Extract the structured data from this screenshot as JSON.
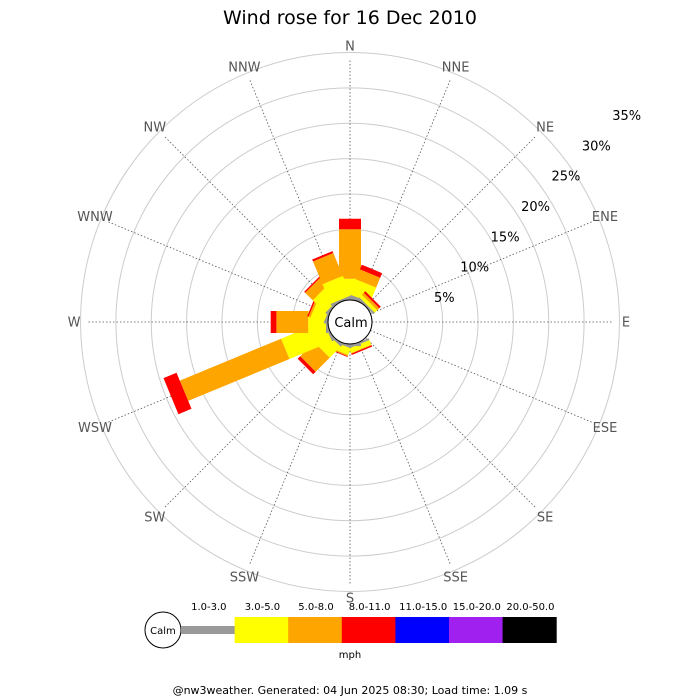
{
  "chart_data": {
    "type": "wind-rose",
    "title": "Wind rose for 16 Dec 2010",
    "directions": [
      "N",
      "NNE",
      "NE",
      "ENE",
      "E",
      "ESE",
      "SE",
      "SSE",
      "S",
      "SSW",
      "SW",
      "WSW",
      "W",
      "WNW",
      "NW",
      "NNW"
    ],
    "radial_labels": [
      "5%",
      "10%",
      "15%",
      "20%",
      "25%",
      "30%",
      "35%"
    ],
    "radial_values": [
      5,
      10,
      15,
      20,
      25,
      30,
      35
    ],
    "calm_label": "Calm",
    "speed_bins": [
      {
        "label": "1.0-3.0",
        "color": "#999999"
      },
      {
        "label": "3.0-5.0",
        "color": "#ffff00"
      },
      {
        "label": "5.0-8.0",
        "color": "#ffa500"
      },
      {
        "label": "8.0-11.0",
        "color": "#ff0000"
      },
      {
        "label": "11.0-15.0",
        "color": "#0000ff"
      },
      {
        "label": "15.0-20.0",
        "color": "#a020f0"
      },
      {
        "label": "20.0-50.0",
        "color": "#000000"
      }
    ],
    "unit": "mph",
    "series": [
      {
        "direction": "N",
        "values": [
          0.5,
          2.5,
          7.0,
          1.5,
          0,
          0,
          0
        ]
      },
      {
        "direction": "NNE",
        "values": [
          0.5,
          2.3,
          1.5,
          0.7,
          0,
          0,
          0
        ]
      },
      {
        "direction": "NE",
        "values": [
          0.3,
          0.5,
          0.4,
          0.3,
          0,
          0,
          0
        ]
      },
      {
        "direction": "ENE",
        "values": [
          0,
          0,
          0,
          0,
          0,
          0,
          0
        ]
      },
      {
        "direction": "E",
        "values": [
          0,
          0,
          0,
          0,
          0,
          0,
          0
        ]
      },
      {
        "direction": "ESE",
        "values": [
          0,
          0,
          0,
          0,
          0,
          0,
          0
        ]
      },
      {
        "direction": "SE",
        "values": [
          0,
          0,
          0,
          0,
          0,
          0,
          0
        ]
      },
      {
        "direction": "SSE",
        "values": [
          0.3,
          0.7,
          0.1,
          0.2,
          0,
          0,
          0
        ]
      },
      {
        "direction": "S",
        "values": [
          0.3,
          0,
          0,
          0,
          0,
          0,
          0
        ]
      },
      {
        "direction": "SSW",
        "values": [
          0.3,
          1.0,
          0.2,
          0.1,
          0,
          0,
          0
        ]
      },
      {
        "direction": "SW",
        "values": [
          0.3,
          2.2,
          2.8,
          0.5,
          0,
          0,
          0
        ]
      },
      {
        "direction": "WSW",
        "values": [
          0.3,
          6.5,
          15.5,
          2.0,
          0,
          0,
          0
        ]
      },
      {
        "direction": "W",
        "values": [
          0.3,
          2.5,
          4.5,
          0.8,
          0,
          0,
          0
        ]
      },
      {
        "direction": "WNW",
        "values": [
          0.3,
          2.0,
          0.3,
          0.2,
          0,
          0,
          0
        ]
      },
      {
        "direction": "NW",
        "values": [
          0.3,
          2.5,
          1.5,
          0.2,
          0,
          0,
          0
        ]
      },
      {
        "direction": "NNW",
        "values": [
          0.3,
          3.0,
          3.5,
          0.3,
          0,
          0,
          0
        ]
      }
    ]
  },
  "footer": "@nw3weather. Generated: 04 Jun 2025 08:30; Load time: 1.09 s"
}
